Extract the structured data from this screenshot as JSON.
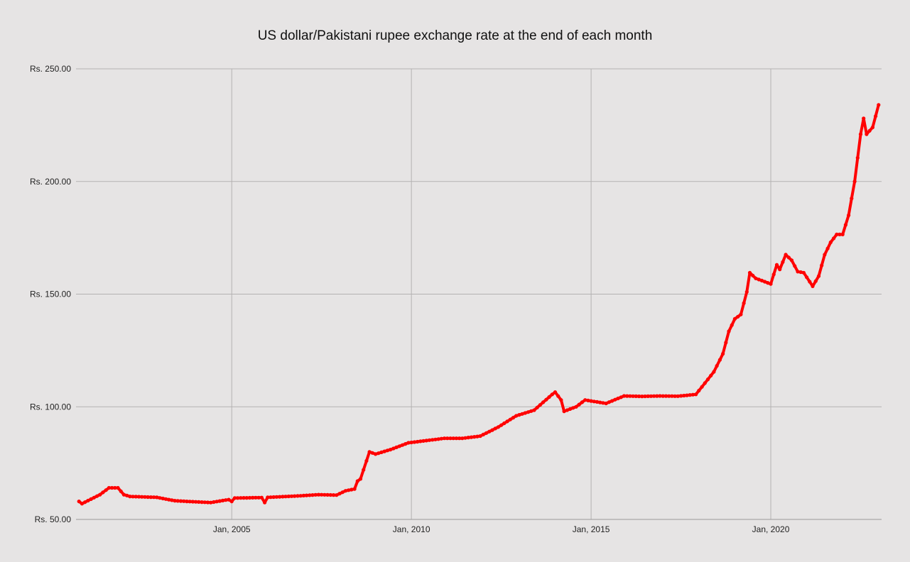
{
  "chart_data": {
    "type": "line",
    "title": "US dollar/Pakistani rupee exchange rate at the end of each month",
    "xlabel": "",
    "ylabel": "",
    "ylim": [
      50,
      250
    ],
    "xlim": [
      "2000-09",
      "2023-02"
    ],
    "grid": true,
    "legend": "none",
    "y_ticks": [
      {
        "value": 250,
        "label": "Rs. 250.00"
      },
      {
        "value": 200,
        "label": "Rs. 200.00"
      },
      {
        "value": 150,
        "label": "Rs. 150.00"
      },
      {
        "value": 100,
        "label": "Rs. 100.00"
      },
      {
        "value": 50,
        "label": "Rs. 50.00"
      }
    ],
    "x_ticks": [
      {
        "value": "2005-01",
        "label": "Jan, 2005"
      },
      {
        "value": "2010-01",
        "label": "Jan, 2010"
      },
      {
        "value": "2015-01",
        "label": "Jan, 2015"
      },
      {
        "value": "2020-01",
        "label": "Jan, 2020"
      }
    ],
    "series": [
      {
        "color": "#ff0000",
        "keypoints": [
          [
            "2000-10",
            58.0
          ],
          [
            "2000-11",
            57.0
          ],
          [
            "2001-02",
            59.0
          ],
          [
            "2001-05",
            61.0
          ],
          [
            "2001-08",
            64.0
          ],
          [
            "2001-11",
            64.0
          ],
          [
            "2002-01",
            61.0
          ],
          [
            "2002-03",
            60.2
          ],
          [
            "2002-12",
            59.8
          ],
          [
            "2003-06",
            58.3
          ],
          [
            "2004-01",
            57.8
          ],
          [
            "2004-06",
            57.5
          ],
          [
            "2004-12",
            58.8
          ],
          [
            "2005-01",
            58.0
          ],
          [
            "2005-02",
            59.5
          ],
          [
            "2005-11",
            59.7
          ],
          [
            "2005-12",
            57.5
          ],
          [
            "2006-01",
            59.8
          ],
          [
            "2006-12",
            60.5
          ],
          [
            "2007-06",
            61.0
          ],
          [
            "2007-12",
            60.8
          ],
          [
            "2008-03",
            62.7
          ],
          [
            "2008-06",
            63.5
          ],
          [
            "2008-07",
            67.0
          ],
          [
            "2008-08",
            68.0
          ],
          [
            "2008-09",
            72.0
          ],
          [
            "2008-10",
            76.0
          ],
          [
            "2008-11",
            80.0
          ],
          [
            "2009-01",
            79.0
          ],
          [
            "2009-06",
            81.0
          ],
          [
            "2009-12",
            84.0
          ],
          [
            "2010-06",
            85.0
          ],
          [
            "2010-12",
            86.0
          ],
          [
            "2011-06",
            86.0
          ],
          [
            "2011-12",
            87.0
          ],
          [
            "2012-06",
            91.0
          ],
          [
            "2012-12",
            96.0
          ],
          [
            "2013-06",
            98.5
          ],
          [
            "2013-12",
            105.5
          ],
          [
            "2014-01",
            106.5
          ],
          [
            "2014-03",
            103.0
          ],
          [
            "2014-04",
            98.0
          ],
          [
            "2014-08",
            100.0
          ],
          [
            "2014-11",
            103.0
          ],
          [
            "2015-06",
            101.5
          ],
          [
            "2015-12",
            104.8
          ],
          [
            "2016-06",
            104.6
          ],
          [
            "2016-12",
            104.8
          ],
          [
            "2017-06",
            104.7
          ],
          [
            "2017-12",
            105.5
          ],
          [
            "2018-03",
            110.5
          ],
          [
            "2018-06",
            115.5
          ],
          [
            "2018-09",
            123.5
          ],
          [
            "2018-11",
            133.5
          ],
          [
            "2019-01",
            139.0
          ],
          [
            "2019-03",
            141.0
          ],
          [
            "2019-05",
            151.0
          ],
          [
            "2019-06",
            159.5
          ],
          [
            "2019-08",
            157.0
          ],
          [
            "2019-12",
            155.0
          ],
          [
            "2020-01",
            154.5
          ],
          [
            "2020-03",
            163.0
          ],
          [
            "2020-04",
            161.0
          ],
          [
            "2020-06",
            167.5
          ],
          [
            "2020-08",
            165.0
          ],
          [
            "2020-10",
            160.0
          ],
          [
            "2020-12",
            159.5
          ],
          [
            "2021-03",
            153.5
          ],
          [
            "2021-05",
            158.0
          ],
          [
            "2021-07",
            167.5
          ],
          [
            "2021-09",
            173.0
          ],
          [
            "2021-11",
            176.5
          ],
          [
            "2022-01",
            176.5
          ],
          [
            "2022-03",
            185.0
          ],
          [
            "2022-05",
            200.0
          ],
          [
            "2022-07",
            221.0
          ],
          [
            "2022-08",
            228.0
          ],
          [
            "2022-09",
            221.0
          ],
          [
            "2022-11",
            224.0
          ],
          [
            "2023-01",
            234.0
          ]
        ]
      }
    ]
  }
}
